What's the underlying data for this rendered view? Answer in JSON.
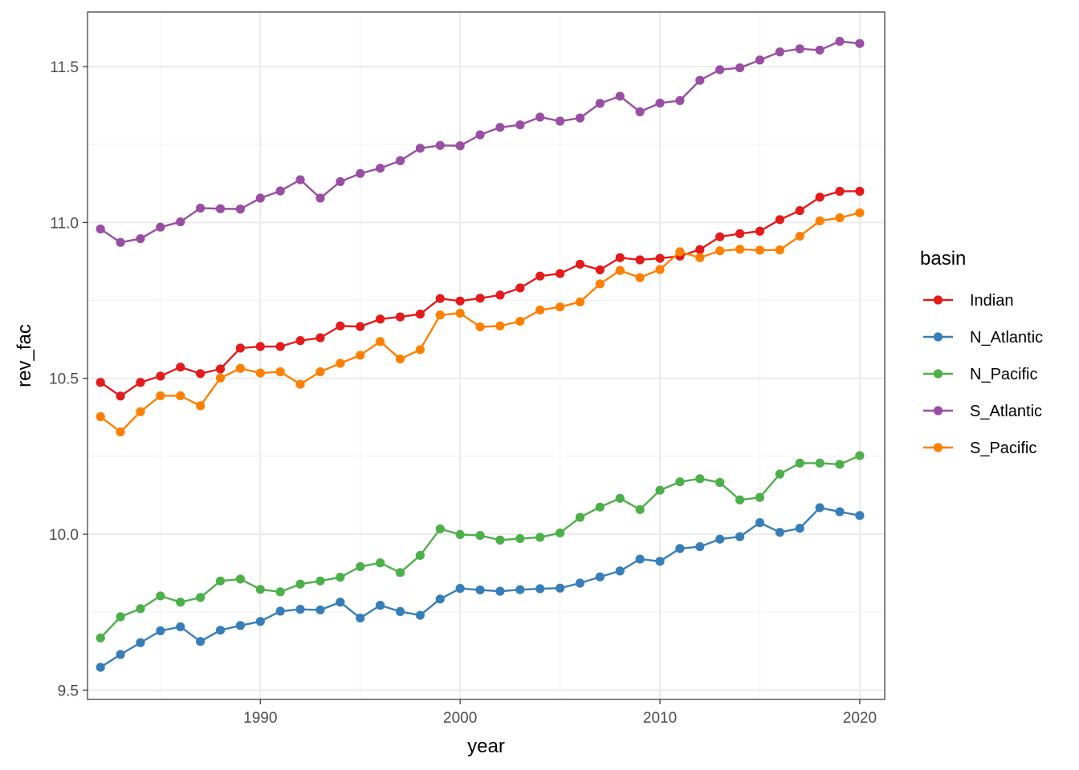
{
  "chart_data": {
    "type": "line",
    "markers": true,
    "title": "",
    "xlabel": "year",
    "ylabel": "rev_fac",
    "xlim": [
      1981.35,
      2021.25
    ],
    "ylim": [
      9.47,
      11.675
    ],
    "x_ticks": [
      1990,
      2000,
      2010,
      2020
    ],
    "x_tick_labels": [
      "1990",
      "2000",
      "2010",
      "2020"
    ],
    "y_ticks": [
      9.5,
      10.0,
      10.5,
      11.0,
      11.5
    ],
    "y_tick_labels": [
      "9.5",
      "10.0",
      "10.5",
      "11.0",
      "11.5"
    ],
    "grid": true,
    "legend": {
      "title": "basin",
      "position": "right"
    },
    "x": [
      1982,
      1983,
      1984,
      1985,
      1986,
      1987,
      1988,
      1989,
      1990,
      1991,
      1992,
      1993,
      1994,
      1995,
      1996,
      1997,
      1998,
      1999,
      2000,
      2001,
      2002,
      2003,
      2004,
      2005,
      2006,
      2007,
      2008,
      2009,
      2010,
      2011,
      2012,
      2013,
      2014,
      2015,
      2016,
      2017,
      2018,
      2019,
      2020
    ],
    "series": [
      {
        "name": "Indian",
        "color": "#e41a1c",
        "values": [
          10.487,
          10.443,
          10.487,
          10.507,
          10.536,
          10.515,
          10.53,
          10.597,
          10.602,
          10.602,
          10.621,
          10.63,
          10.668,
          10.666,
          10.69,
          10.697,
          10.706,
          10.756,
          10.748,
          10.757,
          10.767,
          10.79,
          10.828,
          10.836,
          10.866,
          10.848,
          10.887,
          10.88,
          10.885,
          10.892,
          10.913,
          10.954,
          10.964,
          10.972,
          11.009,
          11.038,
          11.081,
          11.1,
          11.1
        ]
      },
      {
        "name": "N_Atlantic",
        "color": "#377eb8",
        "values": [
          9.573,
          9.614,
          9.652,
          9.69,
          9.703,
          9.656,
          9.692,
          9.707,
          9.72,
          9.753,
          9.759,
          9.757,
          9.782,
          9.731,
          9.772,
          9.752,
          9.74,
          9.792,
          9.826,
          9.821,
          9.817,
          9.822,
          9.825,
          9.827,
          9.843,
          9.863,
          9.882,
          9.92,
          9.913,
          9.954,
          9.96,
          9.984,
          9.992,
          10.037,
          10.006,
          10.019,
          10.085,
          10.072,
          10.06
        ]
      },
      {
        "name": "N_Pacific",
        "color": "#4daf4a",
        "values": [
          9.667,
          9.735,
          9.761,
          9.802,
          9.782,
          9.797,
          9.85,
          9.856,
          9.823,
          9.815,
          9.84,
          9.85,
          9.862,
          9.896,
          9.908,
          9.877,
          9.932,
          10.017,
          9.999,
          9.996,
          9.981,
          9.986,
          9.99,
          10.004,
          10.054,
          10.087,
          10.115,
          10.079,
          10.141,
          10.168,
          10.178,
          10.166,
          10.11,
          10.118,
          10.193,
          10.228,
          10.228,
          10.224,
          10.252
        ]
      },
      {
        "name": "S_Atlantic",
        "color": "#984ea3",
        "values": [
          10.979,
          10.936,
          10.948,
          10.985,
          11.002,
          11.046,
          11.044,
          11.043,
          11.078,
          11.101,
          11.137,
          11.078,
          11.131,
          11.157,
          11.174,
          11.198,
          11.238,
          11.247,
          11.246,
          11.281,
          11.305,
          11.313,
          11.338,
          11.325,
          11.335,
          11.382,
          11.405,
          11.355,
          11.383,
          11.391,
          11.456,
          11.49,
          11.496,
          11.521,
          11.547,
          11.557,
          11.553,
          11.581,
          11.574
        ]
      },
      {
        "name": "S_Pacific",
        "color": "#ff7f00",
        "values": [
          10.377,
          10.328,
          10.393,
          10.444,
          10.444,
          10.412,
          10.501,
          10.532,
          10.517,
          10.521,
          10.481,
          10.521,
          10.548,
          10.574,
          10.618,
          10.562,
          10.592,
          10.703,
          10.709,
          10.665,
          10.668,
          10.683,
          10.719,
          10.729,
          10.745,
          10.803,
          10.846,
          10.823,
          10.849,
          10.906,
          10.887,
          10.909,
          10.914,
          10.911,
          10.912,
          10.956,
          11.005,
          11.015,
          11.031
        ]
      }
    ]
  }
}
